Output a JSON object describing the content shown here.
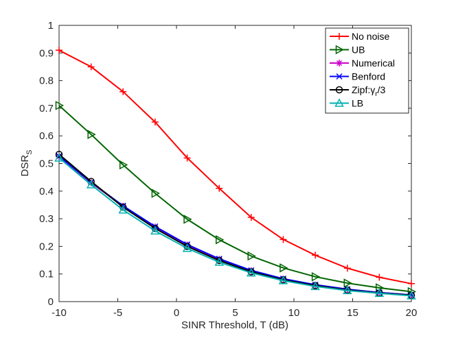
{
  "chart_data": {
    "type": "line",
    "title": "",
    "xlabel": "SINR Threshold, T (dB)",
    "ylabel": "DSR",
    "ylabel_sub": "S",
    "xlim": [
      -10,
      20
    ],
    "ylim": [
      0,
      1
    ],
    "xticks": [
      "-10",
      "-5",
      "0",
      "5",
      "10",
      "15",
      "20"
    ],
    "yticks": [
      "0",
      "0.1",
      "0.2",
      "0.3",
      "0.4",
      "0.5",
      "0.6",
      "0.7",
      "0.8",
      "0.9",
      "1"
    ],
    "grid": false,
    "legend_position": "top-right",
    "x": [
      -10,
      -7.27,
      -4.55,
      -1.82,
      0.91,
      3.64,
      6.36,
      9.09,
      11.82,
      14.55,
      17.27,
      20
    ],
    "series": [
      {
        "name": "No noise",
        "color": "#ff0000",
        "marker": "plus",
        "values": [
          0.91,
          0.85,
          0.76,
          0.65,
          0.52,
          0.41,
          0.305,
          0.225,
          0.168,
          0.121,
          0.088,
          0.065
        ]
      },
      {
        "name": "UB",
        "color": "#006400",
        "marker": "triangle-right",
        "values": [
          0.71,
          0.605,
          0.495,
          0.392,
          0.298,
          0.224,
          0.165,
          0.122,
          0.09,
          0.067,
          0.05,
          0.036
        ]
      },
      {
        "name": "Numerical",
        "color": "#cc00cc",
        "marker": "asterisk",
        "values": [
          0.525,
          0.43,
          0.345,
          0.27,
          0.205,
          0.153,
          0.112,
          0.082,
          0.06,
          0.044,
          0.033,
          0.024
        ]
      },
      {
        "name": "Benford",
        "color": "#0000ff",
        "marker": "x",
        "values": [
          0.527,
          0.432,
          0.347,
          0.272,
          0.207,
          0.155,
          0.113,
          0.083,
          0.061,
          0.045,
          0.033,
          0.024
        ]
      },
      {
        "name": "Zipf:γr/3",
        "legend_main": "Zipf:γ",
        "legend_sub": "r",
        "legend_tail": "/3",
        "color": "#000000",
        "marker": "circle",
        "values": [
          0.533,
          0.435,
          0.342,
          0.265,
          0.2,
          0.149,
          0.108,
          0.079,
          0.058,
          0.042,
          0.031,
          0.023
        ]
      },
      {
        "name": "LB",
        "color": "#00b0b0",
        "marker": "triangle-up",
        "values": [
          0.52,
          0.423,
          0.332,
          0.256,
          0.193,
          0.143,
          0.104,
          0.076,
          0.055,
          0.04,
          0.03,
          0.021
        ]
      }
    ]
  }
}
